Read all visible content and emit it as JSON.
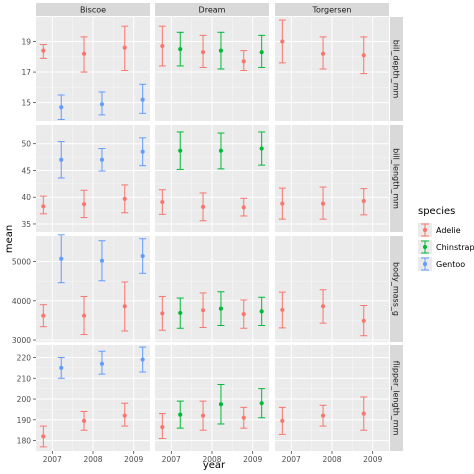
{
  "chart_data": {
    "type": "scatter",
    "kind": "faceted point and errorbar grid",
    "xlabel": "year",
    "ylabel": "mean",
    "x_ticks": [
      2007,
      2008,
      2009
    ],
    "columns": [
      "Biscoe",
      "Dream",
      "Torgersen"
    ],
    "rows": [
      {
        "label": "bill_depth_mm",
        "ylim": [
          13.8,
          20.6
        ],
        "ticks": [
          15,
          17,
          19
        ]
      },
      {
        "label": "bill_length_mm",
        "ylim": [
          33.5,
          53.5
        ],
        "ticks": [
          35,
          40,
          45,
          50
        ]
      },
      {
        "label": "body_mass_g",
        "ylim": [
          2950,
          5650
        ],
        "ticks": [
          3000,
          4000,
          5000
        ]
      },
      {
        "label": "flipper_length_mm",
        "ylim": [
          175,
          226
        ],
        "ticks": [
          180,
          190,
          200,
          210,
          220
        ]
      }
    ],
    "legend": {
      "title": "species",
      "position": "right",
      "items": [
        {
          "name": "Adelie",
          "color": "#F8766D"
        },
        {
          "name": "Chinstrap",
          "color": "#00BA38"
        },
        {
          "name": "Gentoo",
          "color": "#619CFF"
        }
      ]
    },
    "points": [
      {
        "row": 0,
        "col": 0,
        "species": "Adelie",
        "x": 2007,
        "y": 18.4,
        "ymin": 17.9,
        "ymax": 18.8
      },
      {
        "row": 0,
        "col": 0,
        "species": "Adelie",
        "x": 2008,
        "y": 18.2,
        "ymin": 17.0,
        "ymax": 19.3
      },
      {
        "row": 0,
        "col": 0,
        "species": "Adelie",
        "x": 2009,
        "y": 18.6,
        "ymin": 17.1,
        "ymax": 20.0
      },
      {
        "row": 0,
        "col": 0,
        "species": "Gentoo",
        "x": 2007,
        "y": 14.7,
        "ymin": 13.9,
        "ymax": 15.5
      },
      {
        "row": 0,
        "col": 0,
        "species": "Gentoo",
        "x": 2008,
        "y": 14.9,
        "ymin": 14.2,
        "ymax": 15.7
      },
      {
        "row": 0,
        "col": 0,
        "species": "Gentoo",
        "x": 2009,
        "y": 15.2,
        "ymin": 14.3,
        "ymax": 16.2
      },
      {
        "row": 0,
        "col": 1,
        "species": "Adelie",
        "x": 2007,
        "y": 18.7,
        "ymin": 17.4,
        "ymax": 20.0
      },
      {
        "row": 0,
        "col": 1,
        "species": "Adelie",
        "x": 2008,
        "y": 18.3,
        "ymin": 17.3,
        "ymax": 19.4
      },
      {
        "row": 0,
        "col": 1,
        "species": "Adelie",
        "x": 2009,
        "y": 17.7,
        "ymin": 17.1,
        "ymax": 18.4
      },
      {
        "row": 0,
        "col": 1,
        "species": "Chinstrap",
        "x": 2007,
        "y": 18.5,
        "ymin": 17.4,
        "ymax": 19.6
      },
      {
        "row": 0,
        "col": 1,
        "species": "Chinstrap",
        "x": 2008,
        "y": 18.4,
        "ymin": 17.2,
        "ymax": 19.6
      },
      {
        "row": 0,
        "col": 1,
        "species": "Chinstrap",
        "x": 2009,
        "y": 18.3,
        "ymin": 17.3,
        "ymax": 19.4
      },
      {
        "row": 0,
        "col": 2,
        "species": "Adelie",
        "x": 2007,
        "y": 19.0,
        "ymin": 17.6,
        "ymax": 20.4
      },
      {
        "row": 0,
        "col": 2,
        "species": "Adelie",
        "x": 2008,
        "y": 18.2,
        "ymin": 17.2,
        "ymax": 19.3
      },
      {
        "row": 0,
        "col": 2,
        "species": "Adelie",
        "x": 2009,
        "y": 18.1,
        "ymin": 16.9,
        "ymax": 19.3
      },
      {
        "row": 1,
        "col": 0,
        "species": "Adelie",
        "x": 2007,
        "y": 38.3,
        "ymin": 36.9,
        "ymax": 40.2
      },
      {
        "row": 1,
        "col": 0,
        "species": "Adelie",
        "x": 2008,
        "y": 38.7,
        "ymin": 36.2,
        "ymax": 41.3
      },
      {
        "row": 1,
        "col": 0,
        "species": "Adelie",
        "x": 2009,
        "y": 39.7,
        "ymin": 37.1,
        "ymax": 42.3
      },
      {
        "row": 1,
        "col": 0,
        "species": "Gentoo",
        "x": 2007,
        "y": 47.0,
        "ymin": 43.6,
        "ymax": 50.4
      },
      {
        "row": 1,
        "col": 0,
        "species": "Gentoo",
        "x": 2008,
        "y": 47.0,
        "ymin": 44.9,
        "ymax": 49.1
      },
      {
        "row": 1,
        "col": 0,
        "species": "Gentoo",
        "x": 2009,
        "y": 48.5,
        "ymin": 45.9,
        "ymax": 51.1
      },
      {
        "row": 1,
        "col": 1,
        "species": "Adelie",
        "x": 2007,
        "y": 39.1,
        "ymin": 36.8,
        "ymax": 41.4
      },
      {
        "row": 1,
        "col": 1,
        "species": "Adelie",
        "x": 2008,
        "y": 38.2,
        "ymin": 35.6,
        "ymax": 40.8
      },
      {
        "row": 1,
        "col": 1,
        "species": "Adelie",
        "x": 2009,
        "y": 38.1,
        "ymin": 36.5,
        "ymax": 39.8
      },
      {
        "row": 1,
        "col": 1,
        "species": "Chinstrap",
        "x": 2007,
        "y": 48.7,
        "ymin": 45.2,
        "ymax": 52.2
      },
      {
        "row": 1,
        "col": 1,
        "species": "Chinstrap",
        "x": 2008,
        "y": 48.7,
        "ymin": 45.3,
        "ymax": 52.0
      },
      {
        "row": 1,
        "col": 1,
        "species": "Chinstrap",
        "x": 2009,
        "y": 49.1,
        "ymin": 46.0,
        "ymax": 52.2
      },
      {
        "row": 1,
        "col": 2,
        "species": "Adelie",
        "x": 2007,
        "y": 38.8,
        "ymin": 35.9,
        "ymax": 41.7
      },
      {
        "row": 1,
        "col": 2,
        "species": "Adelie",
        "x": 2008,
        "y": 38.8,
        "ymin": 35.9,
        "ymax": 41.9
      },
      {
        "row": 1,
        "col": 2,
        "species": "Adelie",
        "x": 2009,
        "y": 39.3,
        "ymin": 36.7,
        "ymax": 41.6
      },
      {
        "row": 2,
        "col": 0,
        "species": "Adelie",
        "x": 2007,
        "y": 3620,
        "ymin": 3340,
        "ymax": 3900
      },
      {
        "row": 2,
        "col": 0,
        "species": "Adelie",
        "x": 2008,
        "y": 3620,
        "ymin": 3140,
        "ymax": 4110
      },
      {
        "row": 2,
        "col": 0,
        "species": "Adelie",
        "x": 2009,
        "y": 3860,
        "ymin": 3230,
        "ymax": 4480
      },
      {
        "row": 2,
        "col": 0,
        "species": "Gentoo",
        "x": 2007,
        "y": 5070,
        "ymin": 4460,
        "ymax": 5680
      },
      {
        "row": 2,
        "col": 0,
        "species": "Gentoo",
        "x": 2008,
        "y": 5020,
        "ymin": 4510,
        "ymax": 5530
      },
      {
        "row": 2,
        "col": 0,
        "species": "Gentoo",
        "x": 2009,
        "y": 5140,
        "ymin": 4700,
        "ymax": 5580
      },
      {
        "row": 2,
        "col": 1,
        "species": "Adelie",
        "x": 2007,
        "y": 3680,
        "ymin": 3250,
        "ymax": 4110
      },
      {
        "row": 2,
        "col": 1,
        "species": "Adelie",
        "x": 2008,
        "y": 3760,
        "ymin": 3320,
        "ymax": 4200
      },
      {
        "row": 2,
        "col": 1,
        "species": "Adelie",
        "x": 2009,
        "y": 3660,
        "ymin": 3300,
        "ymax": 4020
      },
      {
        "row": 2,
        "col": 1,
        "species": "Chinstrap",
        "x": 2007,
        "y": 3690,
        "ymin": 3300,
        "ymax": 4070
      },
      {
        "row": 2,
        "col": 1,
        "species": "Chinstrap",
        "x": 2008,
        "y": 3800,
        "ymin": 3370,
        "ymax": 4230
      },
      {
        "row": 2,
        "col": 1,
        "species": "Chinstrap",
        "x": 2009,
        "y": 3730,
        "ymin": 3370,
        "ymax": 4090
      },
      {
        "row": 2,
        "col": 2,
        "species": "Adelie",
        "x": 2007,
        "y": 3770,
        "ymin": 3310,
        "ymax": 4220
      },
      {
        "row": 2,
        "col": 2,
        "species": "Adelie",
        "x": 2008,
        "y": 3860,
        "ymin": 3430,
        "ymax": 4280
      },
      {
        "row": 2,
        "col": 2,
        "species": "Adelie",
        "x": 2009,
        "y": 3490,
        "ymin": 3110,
        "ymax": 3880
      },
      {
        "row": 3,
        "col": 0,
        "species": "Adelie",
        "x": 2007,
        "y": 182,
        "ymin": 177,
        "ymax": 187
      },
      {
        "row": 3,
        "col": 0,
        "species": "Adelie",
        "x": 2008,
        "y": 189.5,
        "ymin": 185,
        "ymax": 194
      },
      {
        "row": 3,
        "col": 0,
        "species": "Adelie",
        "x": 2009,
        "y": 192,
        "ymin": 187,
        "ymax": 198
      },
      {
        "row": 3,
        "col": 0,
        "species": "Gentoo",
        "x": 2007,
        "y": 215,
        "ymin": 210,
        "ymax": 220
      },
      {
        "row": 3,
        "col": 0,
        "species": "Gentoo",
        "x": 2008,
        "y": 217,
        "ymin": 212,
        "ymax": 223
      },
      {
        "row": 3,
        "col": 0,
        "species": "Gentoo",
        "x": 2009,
        "y": 219,
        "ymin": 213,
        "ymax": 225
      },
      {
        "row": 3,
        "col": 1,
        "species": "Adelie",
        "x": 2007,
        "y": 186.5,
        "ymin": 181,
        "ymax": 193
      },
      {
        "row": 3,
        "col": 1,
        "species": "Adelie",
        "x": 2008,
        "y": 192,
        "ymin": 185,
        "ymax": 199
      },
      {
        "row": 3,
        "col": 1,
        "species": "Adelie",
        "x": 2009,
        "y": 191,
        "ymin": 186,
        "ymax": 196
      },
      {
        "row": 3,
        "col": 1,
        "species": "Chinstrap",
        "x": 2007,
        "y": 192.5,
        "ymin": 186,
        "ymax": 199
      },
      {
        "row": 3,
        "col": 1,
        "species": "Chinstrap",
        "x": 2008,
        "y": 197.5,
        "ymin": 188,
        "ymax": 207
      },
      {
        "row": 3,
        "col": 1,
        "species": "Chinstrap",
        "x": 2009,
        "y": 198,
        "ymin": 191,
        "ymax": 205
      },
      {
        "row": 3,
        "col": 2,
        "species": "Adelie",
        "x": 2007,
        "y": 189.5,
        "ymin": 183,
        "ymax": 196
      },
      {
        "row": 3,
        "col": 2,
        "species": "Adelie",
        "x": 2008,
        "y": 192,
        "ymin": 187,
        "ymax": 197
      },
      {
        "row": 3,
        "col": 2,
        "species": "Adelie",
        "x": 2009,
        "y": 193,
        "ymin": 185,
        "ymax": 201
      }
    ]
  }
}
